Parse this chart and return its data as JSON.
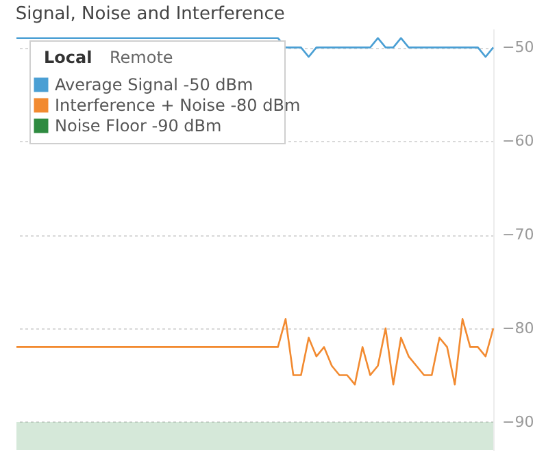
{
  "chart_data": {
    "type": "line",
    "title": "Signal, Noise and Interference",
    "annotations": [
      "Local",
      "Remote"
    ],
    "categories": [
      null,
      null,
      null,
      null,
      null,
      null,
      null,
      null,
      null,
      null,
      null,
      null,
      null,
      null,
      null,
      null,
      null,
      null,
      null,
      null,
      null,
      null,
      null,
      null,
      null,
      null,
      null,
      null,
      null,
      null,
      null,
      null,
      null,
      null,
      null,
      null,
      null,
      null,
      null,
      null,
      null,
      null,
      null,
      null,
      null,
      null,
      null,
      null,
      null,
      null,
      null,
      null,
      null,
      null,
      null,
      null,
      null,
      null,
      null,
      null,
      null,
      null,
      null
    ],
    "series": [
      {
        "name": "Average Signal -50 dBm",
        "color": "#4a9fd4",
        "values": [
          -49,
          -49,
          -49,
          -49,
          -49,
          -49,
          -49,
          -49,
          -49,
          -49,
          -49,
          -49,
          -49,
          -49,
          -49,
          -49,
          -49,
          -49,
          -49,
          -49,
          -49,
          -49,
          -49,
          -49,
          -49,
          -49,
          -49,
          -49,
          -49,
          -49,
          -49,
          -49,
          -49,
          -49,
          -49,
          -50,
          -50,
          -50,
          -51,
          -50,
          -50,
          -50,
          -50,
          -50,
          -50,
          -50,
          -50,
          -49,
          -50,
          -50,
          -49,
          -50,
          -50,
          -50,
          -50,
          -50,
          -50,
          -50,
          -50,
          -50,
          -50,
          -51,
          -50
        ]
      },
      {
        "name": "Interference + Noise -80 dBm",
        "color": "#f28a30",
        "values": [
          -82,
          -82,
          -82,
          -82,
          -82,
          -82,
          -82,
          -82,
          -82,
          -82,
          -82,
          -82,
          -82,
          -82,
          -82,
          -82,
          -82,
          -82,
          -82,
          -82,
          -82,
          -82,
          -82,
          -82,
          -82,
          -82,
          -82,
          -82,
          -82,
          -82,
          -82,
          -82,
          -82,
          -82,
          -82,
          -79,
          -85,
          -85,
          -81,
          -83,
          -82,
          -84,
          -85,
          -85,
          -86,
          -82,
          -85,
          -84,
          -80,
          -86,
          -81,
          -83,
          -84,
          -85,
          -85,
          -81,
          -82,
          -86,
          -79,
          -82,
          -82,
          -83,
          -80
        ]
      }
    ],
    "bands": [
      {
        "axis": "y",
        "from": -93,
        "to": -90,
        "label": "Noise Floor -90 dBm",
        "color": "#2e8b40"
      }
    ],
    "ylim": [
      -93,
      -48
    ],
    "yticks": [
      -50,
      -60,
      -70,
      -80,
      -90
    ],
    "grid": "y",
    "legend": "top left",
    "tick_labels": "y"
  }
}
